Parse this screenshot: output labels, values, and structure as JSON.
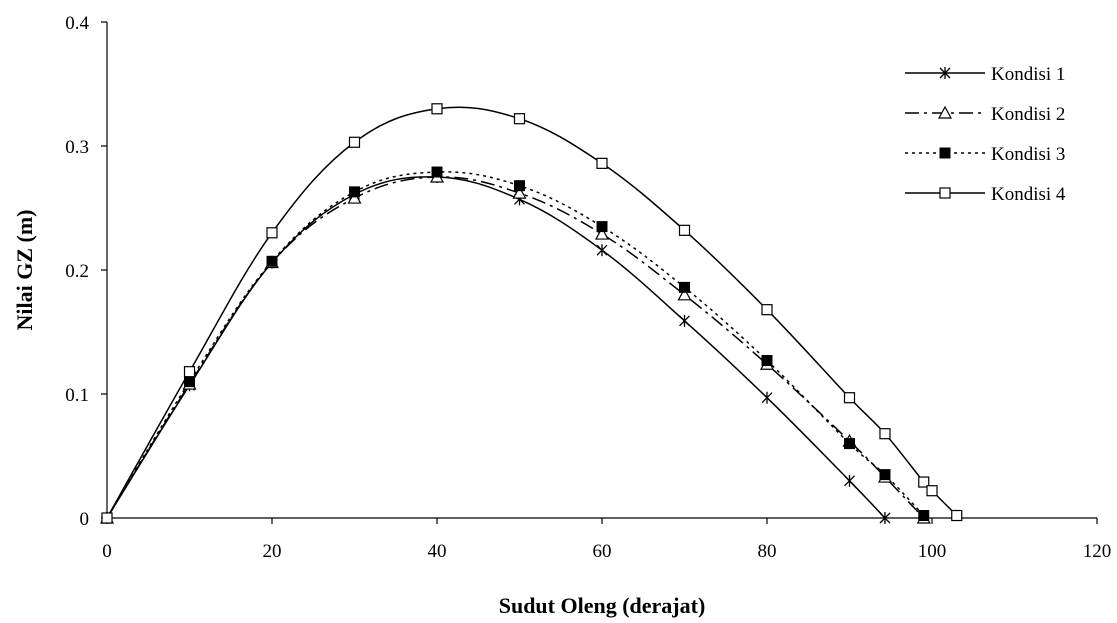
{
  "chart_data": {
    "type": "line",
    "xlabel": "Sudut Oleng (derajat)",
    "ylabel": "Nilai GZ (m)",
    "xlim": [
      0,
      120
    ],
    "ylim": [
      0,
      0.4
    ],
    "xticks": [
      "0",
      "20",
      "40",
      "60",
      "80",
      "100",
      "120"
    ],
    "yticks": [
      "0",
      "0.1",
      "0.2",
      "0.3",
      "0.4"
    ],
    "grid": false,
    "legend_position": "top-right",
    "series": [
      {
        "name": "Kondisi 1",
        "marker": "asterisk",
        "line_style": "solid",
        "color": "#000000",
        "x": [
          0,
          10,
          20,
          30,
          40,
          50,
          60,
          70,
          80,
          90,
          94.3
        ],
        "y": [
          0,
          0.107,
          0.206,
          0.261,
          0.275,
          0.257,
          0.216,
          0.159,
          0.097,
          0.03,
          0.0
        ]
      },
      {
        "name": "Kondisi 2",
        "marker": "triangle-open",
        "line_style": "dash-dot",
        "color": "#000000",
        "x": [
          0,
          10,
          20,
          30,
          40,
          50,
          60,
          70,
          80,
          90,
          94.3,
          99
        ],
        "y": [
          0,
          0.108,
          0.206,
          0.258,
          0.275,
          0.262,
          0.229,
          0.18,
          0.124,
          0.062,
          0.033,
          0.0
        ]
      },
      {
        "name": "Kondisi 3",
        "marker": "square-filled",
        "line_style": "dotted",
        "color": "#000000",
        "x": [
          0,
          10,
          20,
          30,
          40,
          50,
          60,
          70,
          80,
          90,
          94.3,
          99
        ],
        "y": [
          0,
          0.11,
          0.207,
          0.263,
          0.279,
          0.268,
          0.235,
          0.186,
          0.127,
          0.06,
          0.035,
          0.002
        ]
      },
      {
        "name": "Kondisi 4",
        "marker": "square-open",
        "line_style": "solid",
        "color": "#000000",
        "x": [
          0,
          10,
          20,
          30,
          40,
          50,
          60,
          70,
          80,
          90,
          94.3,
          99,
          100,
          103
        ],
        "y": [
          0,
          0.118,
          0.23,
          0.303,
          0.33,
          0.322,
          0.286,
          0.232,
          0.168,
          0.097,
          0.068,
          0.029,
          0.022,
          0.002
        ]
      }
    ]
  }
}
